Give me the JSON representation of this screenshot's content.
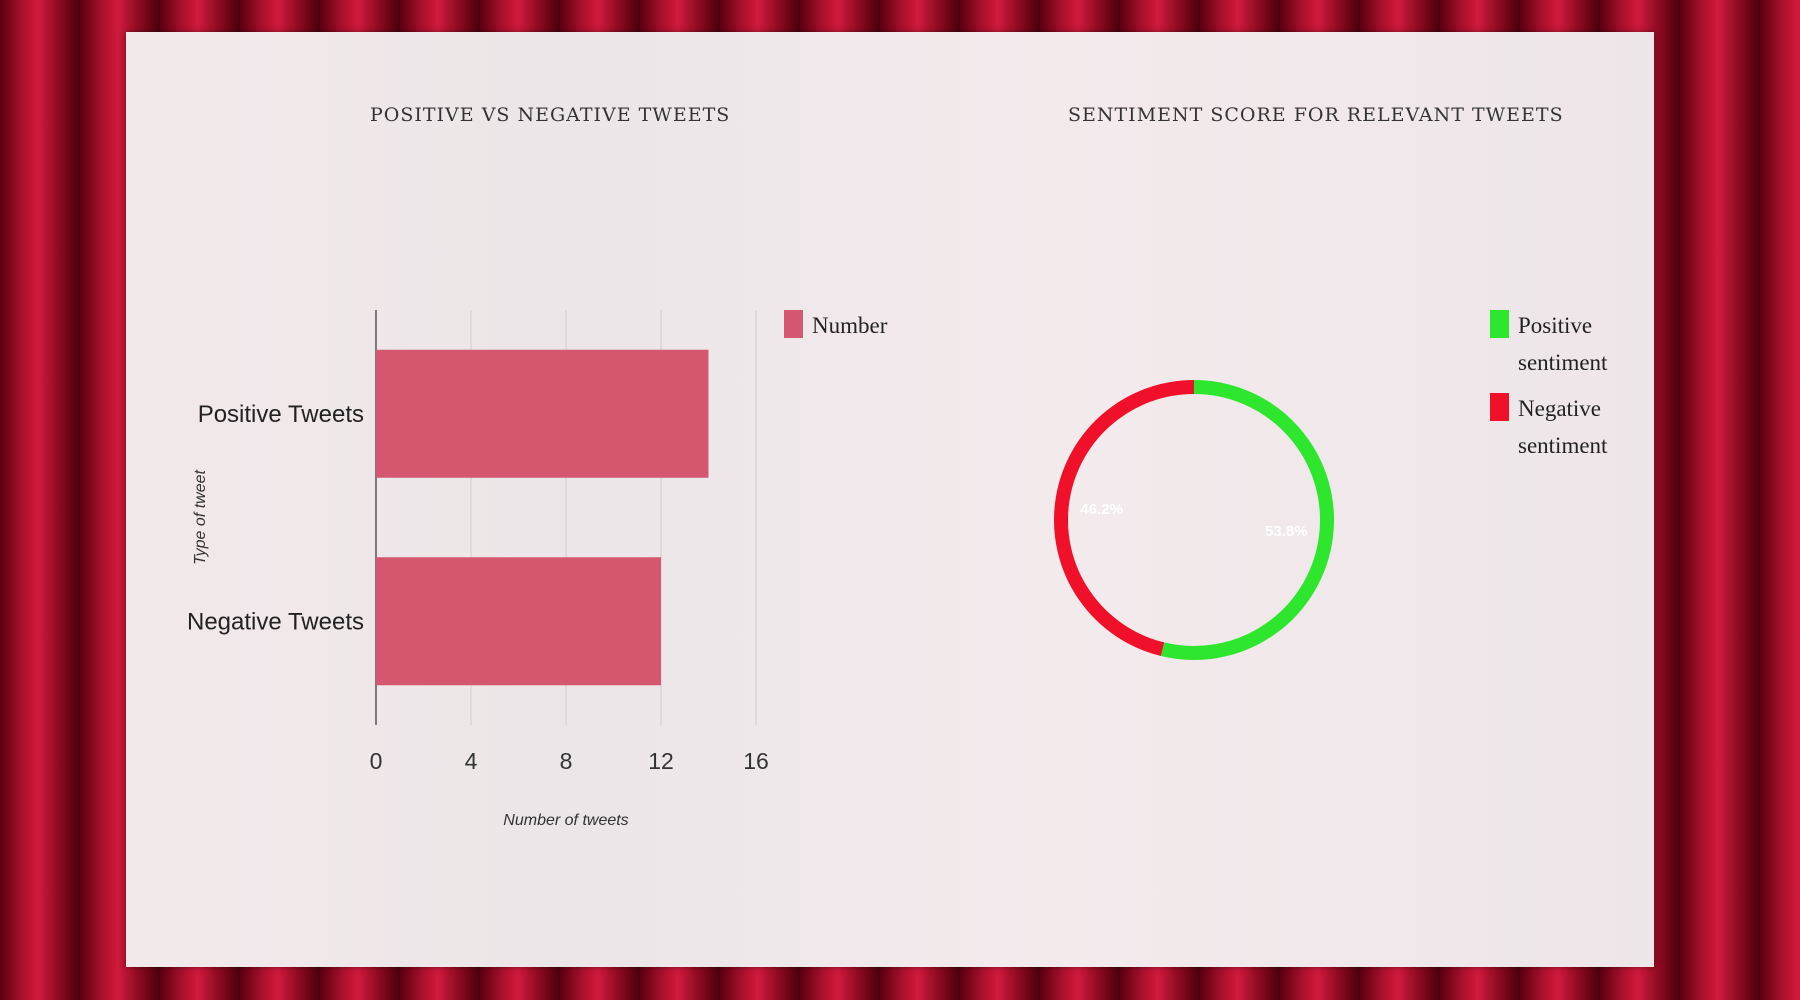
{
  "chart_data": [
    {
      "type": "bar",
      "orientation": "horizontal",
      "title": "Positive vs Negative Tweets",
      "xlabel": "Number of tweets",
      "ylabel": "Type of tweet",
      "categories": [
        "Positive Tweets",
        "Negative Tweets"
      ],
      "series": [
        {
          "name": "Number",
          "values": [
            14,
            12
          ]
        }
      ],
      "xlim": [
        0,
        16
      ],
      "xticks": [
        0,
        4,
        8,
        12,
        16
      ],
      "grid": true,
      "legend_position": "right",
      "colors": {
        "bar": "#d4566f"
      }
    },
    {
      "type": "pie",
      "variant": "donut",
      "title": "Sentiment score for relevant tweets",
      "labels": [
        "Positive sentiment",
        "Negative sentiment"
      ],
      "values": [
        53.8,
        46.2
      ],
      "value_labels": [
        "53.8%",
        "46.2%"
      ],
      "legend_position": "right",
      "colors": {
        "Positive sentiment": "#2ee62e",
        "Negative sentiment": "#f0102a"
      }
    }
  ]
}
